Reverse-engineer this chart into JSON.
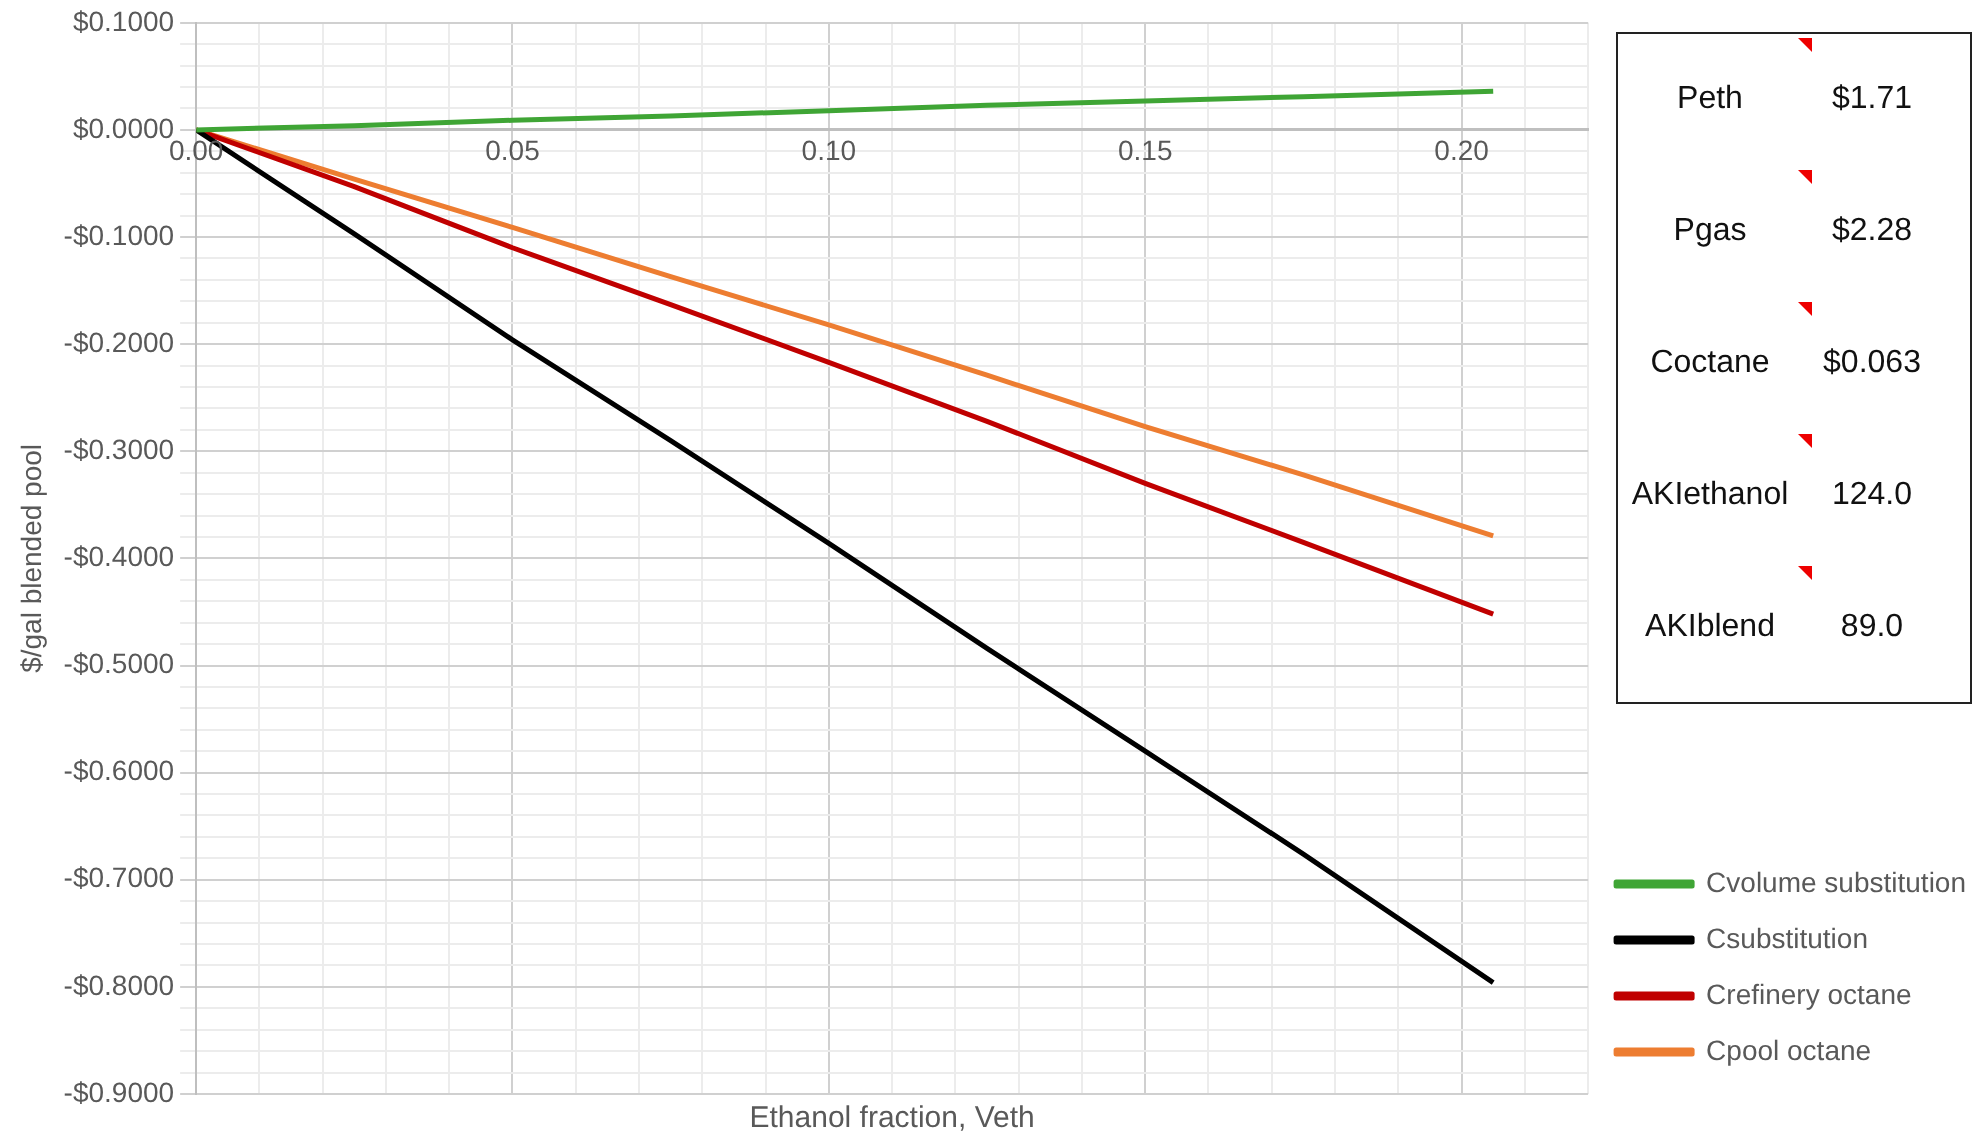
{
  "chart_data": {
    "type": "line",
    "xlabel": "Ethanol fraction, Veth",
    "ylabel": "$/gal blended pool",
    "series": [
      {
        "name": "Cvolume substitution",
        "color": "#3fa535",
        "x": [
          0,
          0.025,
          0.05,
          0.075,
          0.1,
          0.125,
          0.15,
          0.175,
          0.205
        ],
        "values": [
          0,
          0.004,
          0.009,
          0.013,
          0.018,
          0.023,
          0.027,
          0.031,
          0.036
        ]
      },
      {
        "name": "Csubstitution",
        "color": "#000000",
        "x": [
          0,
          0.025,
          0.05,
          0.075,
          0.1,
          0.125,
          0.15,
          0.175,
          0.205
        ],
        "values": [
          0,
          -0.097,
          -0.196,
          -0.29,
          -0.386,
          -0.484,
          -0.58,
          -0.676,
          -0.796
        ]
      },
      {
        "name": "Crefinery octane",
        "color": "#c00000",
        "x": [
          0,
          0.025,
          0.05,
          0.075,
          0.1,
          0.125,
          0.15,
          0.175,
          0.205
        ],
        "values": [
          0,
          -0.053,
          -0.11,
          -0.163,
          -0.217,
          -0.272,
          -0.33,
          -0.385,
          -0.452
        ]
      },
      {
        "name": "Cpool octane",
        "color": "#ed7d31",
        "x": [
          0,
          0.025,
          0.05,
          0.075,
          0.1,
          0.125,
          0.15,
          0.175,
          0.205
        ],
        "values": [
          0,
          -0.046,
          -0.091,
          -0.137,
          -0.182,
          -0.229,
          -0.277,
          -0.322,
          -0.379
        ]
      }
    ],
    "xlim": [
      0,
      0.22
    ],
    "xticks": [
      {
        "value": 0,
        "label": "0.00"
      },
      {
        "value": 0.01,
        "label": null
      },
      {
        "value": 0.02,
        "label": null
      },
      {
        "value": 0.03,
        "label": null
      },
      {
        "value": 0.04,
        "label": null
      },
      {
        "value": 0.05,
        "label": "0.05"
      },
      {
        "value": 0.06,
        "label": null
      },
      {
        "value": 0.07,
        "label": null
      },
      {
        "value": 0.08,
        "label": null
      },
      {
        "value": 0.09,
        "label": null
      },
      {
        "value": 0.1,
        "label": "0.10"
      },
      {
        "value": 0.11,
        "label": null
      },
      {
        "value": 0.12,
        "label": null
      },
      {
        "value": 0.13,
        "label": null
      },
      {
        "value": 0.14,
        "label": null
      },
      {
        "value": 0.15,
        "label": "0.15"
      },
      {
        "value": 0.16,
        "label": null
      },
      {
        "value": 0.17,
        "label": null
      },
      {
        "value": 0.18,
        "label": null
      },
      {
        "value": 0.19,
        "label": null
      },
      {
        "value": 0.2,
        "label": "0.20"
      },
      {
        "value": 0.21,
        "label": null
      },
      {
        "value": 0.22,
        "label": null
      }
    ],
    "ylim": [
      -0.9,
      0.1
    ],
    "yticks": [
      {
        "value": 0.1,
        "label": "$0.1000"
      },
      {
        "value": 0.08,
        "label": null
      },
      {
        "value": 0.06,
        "label": null
      },
      {
        "value": 0.04,
        "label": null
      },
      {
        "value": 0.02,
        "label": null
      },
      {
        "value": 0,
        "label": "$0.0000"
      },
      {
        "value": -0.02,
        "label": null
      },
      {
        "value": -0.04,
        "label": null
      },
      {
        "value": -0.06,
        "label": null
      },
      {
        "value": -0.08,
        "label": null
      },
      {
        "value": -0.1,
        "label": "-$0.1000"
      },
      {
        "value": -0.12,
        "label": null
      },
      {
        "value": -0.14,
        "label": null
      },
      {
        "value": -0.16,
        "label": null
      },
      {
        "value": -0.18,
        "label": null
      },
      {
        "value": -0.2,
        "label": "-$0.2000"
      },
      {
        "value": -0.22,
        "label": null
      },
      {
        "value": -0.24,
        "label": null
      },
      {
        "value": -0.26,
        "label": null
      },
      {
        "value": -0.28,
        "label": null
      },
      {
        "value": -0.3,
        "label": "-$0.3000"
      },
      {
        "value": -0.32,
        "label": null
      },
      {
        "value": -0.34,
        "label": null
      },
      {
        "value": -0.36,
        "label": null
      },
      {
        "value": -0.38,
        "label": null
      },
      {
        "value": -0.4,
        "label": "-$0.4000"
      },
      {
        "value": -0.42,
        "label": null
      },
      {
        "value": -0.44,
        "label": null
      },
      {
        "value": -0.46,
        "label": null
      },
      {
        "value": -0.48,
        "label": null
      },
      {
        "value": -0.5,
        "label": "-$0.5000"
      },
      {
        "value": -0.52,
        "label": null
      },
      {
        "value": -0.54,
        "label": null
      },
      {
        "value": -0.56,
        "label": null
      },
      {
        "value": -0.58,
        "label": null
      },
      {
        "value": -0.6,
        "label": "-$0.6000"
      },
      {
        "value": -0.62,
        "label": null
      },
      {
        "value": -0.64,
        "label": null
      },
      {
        "value": -0.66,
        "label": null
      },
      {
        "value": -0.68,
        "label": null
      },
      {
        "value": -0.7,
        "label": "-$0.7000"
      },
      {
        "value": -0.72,
        "label": null
      },
      {
        "value": -0.74,
        "label": null
      },
      {
        "value": -0.76,
        "label": null
      },
      {
        "value": -0.78,
        "label": null
      },
      {
        "value": -0.8,
        "label": "-$0.8000"
      },
      {
        "value": -0.82,
        "label": null
      },
      {
        "value": -0.84,
        "label": null
      },
      {
        "value": -0.86,
        "label": null
      },
      {
        "value": -0.88,
        "label": null
      },
      {
        "value": -0.9,
        "label": "-$0.9000"
      }
    ],
    "grid": true,
    "legend": "right",
    "marker": "none",
    "line_style": "solid",
    "annotations": [
      "Peth",
      "$1.71",
      "Pgas",
      "$2.28",
      "Coctane",
      "$0.063",
      "AKIethanol",
      "124.0",
      "AKIblend",
      "89.0"
    ]
  }
}
